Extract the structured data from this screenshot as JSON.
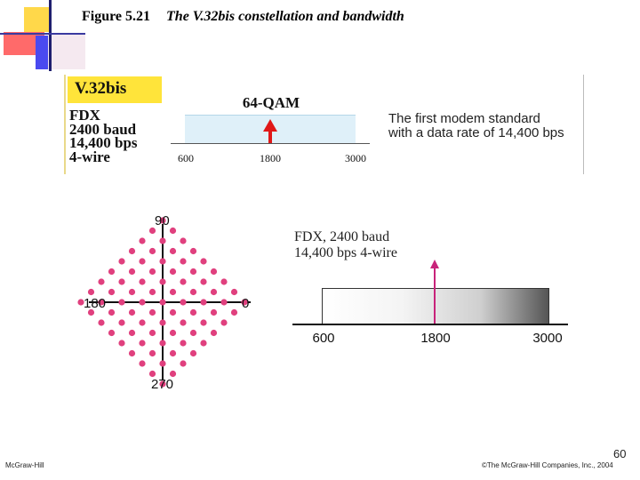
{
  "figure": {
    "label": "Figure 5.21",
    "caption": "The V.32bis constellation and bandwidth"
  },
  "top_panel": {
    "badge": "V.32bis",
    "specs": [
      "FDX",
      "2400 baud",
      "14,400 bps",
      "4-wire"
    ],
    "modulation": "64-QAM",
    "ticks": [
      "600",
      "1800",
      "3000"
    ],
    "note_lines": [
      "The first modem standard",
      "with a data rate of 14,400 bps"
    ]
  },
  "constellation": {
    "angles": {
      "top": "90",
      "right": "0",
      "bottom": "270",
      "left": "180"
    },
    "dot_color": "#e0407e"
  },
  "band_diagram": {
    "label_lines": [
      "FDX, 2400 baud",
      "14,400 bps 4-wire"
    ],
    "ticks": [
      "600",
      "1800",
      "3000"
    ],
    "marker_color": "#c8237a"
  },
  "footer": {
    "left": "McGraw-Hill",
    "right": "©The McGraw-Hill Companies, Inc., 2004",
    "page": "60"
  }
}
